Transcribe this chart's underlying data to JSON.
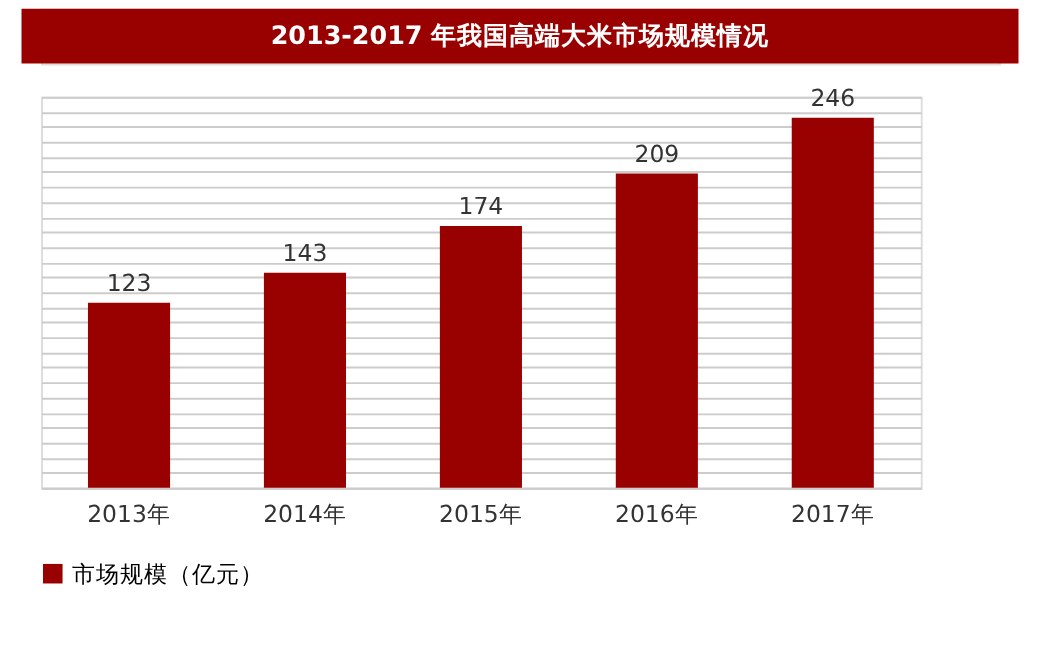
{
  "chart_data": {
    "type": "bar",
    "title": "2013-2017 年我国高端大米市场规模情况",
    "categories": [
      "2013年",
      "2014年",
      "2015年",
      "2016年",
      "2017年"
    ],
    "series": [
      {
        "name": "市场规模（亿元）",
        "color": "#990000",
        "values": [
          123,
          143,
          174,
          209,
          246
        ]
      }
    ],
    "data_labels": true,
    "grid": "y",
    "legend": "bottom",
    "tick_labels": "x"
  }
}
